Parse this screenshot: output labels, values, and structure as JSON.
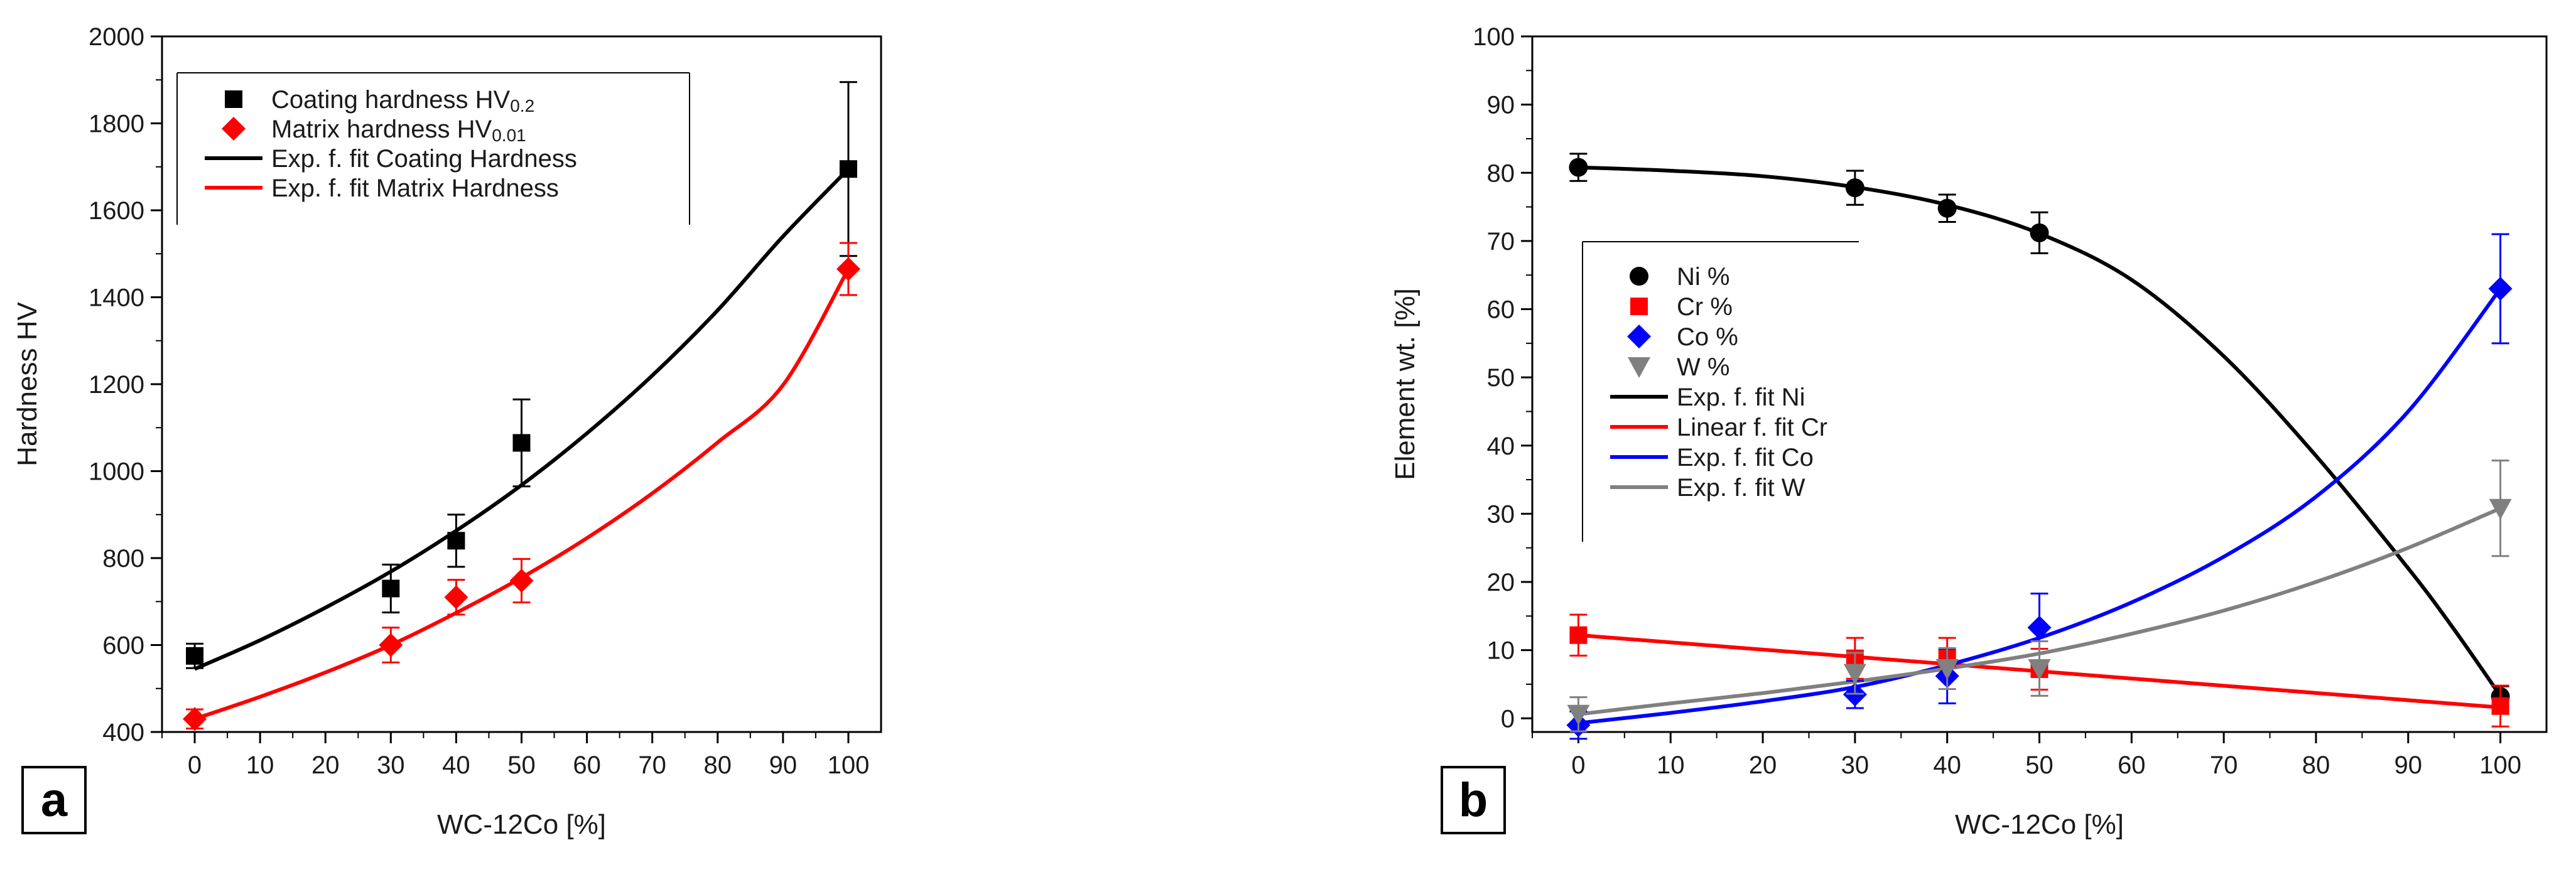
{
  "chart_data": [
    {
      "type": "scatter",
      "panel_label": "a",
      "xlabel": "WC-12Co [%]",
      "ylabel": "Hardness HV",
      "xlim": [
        -5,
        105
      ],
      "ylim": [
        400,
        2000
      ],
      "xticks": [
        0,
        10,
        20,
        30,
        40,
        50,
        60,
        70,
        80,
        90,
        100
      ],
      "yticks": [
        400,
        600,
        800,
        1000,
        1200,
        1400,
        1600,
        1800,
        2000
      ],
      "legend_position": "top-left",
      "series": [
        {
          "name": "Coating hardness HV0.2",
          "name_main": "Coating hardness HV",
          "name_sub": "0.2",
          "kind": "points",
          "marker": "square",
          "color": "#000000",
          "x": [
            0,
            30,
            40,
            50,
            100
          ],
          "y": [
            575,
            730,
            840,
            1065,
            1695
          ],
          "err": [
            28,
            55,
            60,
            100,
            200
          ]
        },
        {
          "name": "Matrix hardness HV0.01",
          "name_main": "Matrix hardness HV",
          "name_sub": "0.01",
          "kind": "points",
          "marker": "diamond",
          "color": "#ff0000",
          "x": [
            0,
            30,
            40,
            50,
            100
          ],
          "y": [
            430,
            600,
            710,
            748,
            1465
          ],
          "err": [
            22,
            40,
            40,
            50,
            60
          ]
        },
        {
          "name": "Exp. f. fit Coating Hardness",
          "kind": "line",
          "color": "#000000",
          "x": [
            0,
            10,
            20,
            30,
            40,
            50,
            60,
            70,
            80,
            90,
            100
          ],
          "y": [
            545,
            611,
            686,
            769,
            863,
            968,
            1087,
            1220,
            1370,
            1540,
            1695
          ]
        },
        {
          "name": "Exp. f. fit Matrix Hardness",
          "kind": "line",
          "color": "#ff0000",
          "x": [
            0,
            10,
            20,
            30,
            40,
            50,
            60,
            70,
            80,
            90,
            100
          ],
          "y": [
            430,
            481,
            537,
            600,
            674,
            755,
            846,
            949,
            1066,
            1198,
            1465
          ]
        }
      ]
    },
    {
      "type": "scatter",
      "panel_label": "b",
      "xlabel": "WC-12Co [%]",
      "ylabel": "Element wt. [%]",
      "xlim": [
        -5,
        105
      ],
      "ylim": [
        -2,
        100
      ],
      "xticks": [
        0,
        10,
        20,
        30,
        40,
        50,
        60,
        70,
        80,
        90,
        100
      ],
      "yticks": [
        0,
        10,
        20,
        30,
        40,
        50,
        60,
        70,
        80,
        90,
        100
      ],
      "legend_position": "center-left",
      "series": [
        {
          "name": "Ni %",
          "kind": "points",
          "marker": "circle",
          "color": "#000000",
          "x": [
            0,
            30,
            40,
            50,
            100
          ],
          "y": [
            80.8,
            77.8,
            74.8,
            71.2,
            3.2
          ],
          "err": [
            2,
            2.5,
            2,
            3,
            1.5
          ]
        },
        {
          "name": "Cr %",
          "kind": "points",
          "marker": "square",
          "color": "#ff0000",
          "x": [
            0,
            30,
            40,
            50,
            100
          ],
          "y": [
            12.2,
            8.8,
            8.8,
            7.2,
            1.8
          ],
          "err": [
            3,
            3,
            3,
            3,
            3
          ]
        },
        {
          "name": "Co %",
          "kind": "points",
          "marker": "diamond",
          "color": "#0000ff",
          "x": [
            0,
            30,
            40,
            50,
            100
          ],
          "y": [
            -1,
            3.5,
            6.2,
            13.3,
            63
          ],
          "err": [
            2,
            2,
            4,
            5,
            8
          ]
        },
        {
          "name": "W %",
          "kind": "points",
          "marker": "triangle-down",
          "color": "#808080",
          "x": [
            0,
            30,
            40,
            50,
            100
          ],
          "y": [
            0.6,
            6.6,
            7.3,
            7.3,
            30.8
          ],
          "err": [
            2.5,
            3,
            3,
            4,
            7
          ]
        },
        {
          "name": "Exp. f. fit Ni",
          "kind": "line",
          "color": "#000000",
          "x": [
            0,
            10,
            20,
            30,
            40,
            50,
            60,
            70,
            80,
            90,
            95,
            100
          ],
          "y": [
            80.8,
            80.3,
            79.5,
            77.9,
            75.3,
            71.1,
            64.3,
            53.1,
            38.5,
            22,
            13,
            3.3
          ]
        },
        {
          "name": "Linear f. fit Cr",
          "kind": "line",
          "color": "#ff0000",
          "x": [
            0,
            100
          ],
          "y": [
            12.2,
            1.6
          ]
        },
        {
          "name": "Exp. f. fit Co",
          "kind": "line",
          "color": "#0000ff",
          "x": [
            0,
            10,
            20,
            30,
            40,
            50,
            60,
            70,
            80,
            90,
            100
          ],
          "y": [
            -0.7,
            0.8,
            2.5,
            4.6,
            7.8,
            11.8,
            17,
            23.7,
            32.5,
            45,
            63
          ]
        },
        {
          "name": "Exp. f. fit W",
          "kind": "line",
          "color": "#808080",
          "x": [
            0,
            10,
            20,
            30,
            40,
            50,
            60,
            70,
            80,
            90,
            100
          ],
          "y": [
            0.6,
            2.2,
            3.7,
            5.4,
            7.3,
            9.5,
            12.4,
            15.8,
            20,
            25,
            30.8
          ]
        }
      ]
    }
  ]
}
